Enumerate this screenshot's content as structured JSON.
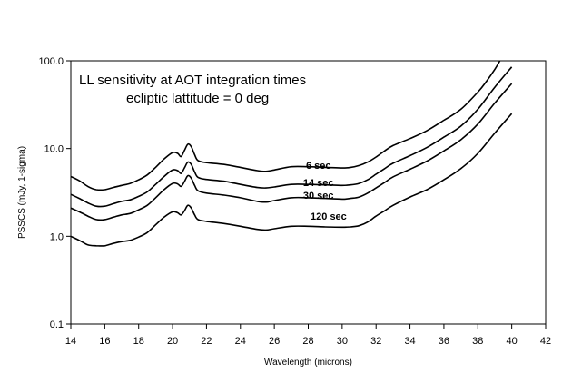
{
  "chart_data": {
    "type": "line",
    "title_lines": [
      "LL sensitivity at AOT integration times",
      "ecliptic lattitude = 0 deg"
    ],
    "xlabel": "Wavelength (microns)",
    "ylabel": "PSSCS (mJy, 1-sigma)",
    "xlim": [
      14,
      42
    ],
    "ylim": [
      0.1,
      100
    ],
    "yscale": "log",
    "x_ticks": [
      14,
      16,
      18,
      20,
      22,
      24,
      26,
      28,
      30,
      32,
      34,
      36,
      38,
      40,
      42
    ],
    "x_tick_labels": [
      "14",
      "16",
      "18",
      "20",
      "22",
      "24",
      "26",
      "28",
      "30",
      "32",
      "34",
      "36",
      "38",
      "40",
      "42"
    ],
    "y_ticks": [
      0.1,
      1,
      10,
      100
    ],
    "y_tick_labels": [
      "0.1",
      "1.0",
      "10.0",
      "100.0"
    ],
    "grid": false,
    "series": [
      {
        "name": "6 sec",
        "label_x": 28.6,
        "label_y": 6.5,
        "x": [
          14,
          14.5,
          15,
          15.5,
          16,
          16.5,
          17,
          17.5,
          18,
          18.5,
          19,
          19.5,
          20,
          20.3,
          20.5,
          20.7,
          20.9,
          21.1,
          21.3,
          21.5,
          22,
          23,
          24,
          25,
          25.5,
          26,
          27,
          28,
          29,
          30,
          30.5,
          31,
          31.5,
          32,
          32.5,
          33,
          34,
          35,
          36,
          37,
          38,
          38.5,
          39,
          39.3
        ],
        "values": [
          4.8,
          4.3,
          3.7,
          3.4,
          3.4,
          3.6,
          3.8,
          4.0,
          4.4,
          5.0,
          6.1,
          7.6,
          9.0,
          8.8,
          8.1,
          9.5,
          11.2,
          10.5,
          8.5,
          7.3,
          6.9,
          6.6,
          6.1,
          5.6,
          5.5,
          5.7,
          6.2,
          6.2,
          6.1,
          6.0,
          6.1,
          6.4,
          7.0,
          8.0,
          9.4,
          10.8,
          13.0,
          16.0,
          21.0,
          28.0,
          44.0,
          58.0,
          80.0,
          100.0
        ]
      },
      {
        "name": "14 sec",
        "label_x": 28.6,
        "label_y": 4.1,
        "x": [
          14,
          14.5,
          15,
          15.5,
          16,
          16.5,
          17,
          17.5,
          18,
          18.5,
          19,
          19.5,
          20,
          20.3,
          20.5,
          20.7,
          20.9,
          21.1,
          21.3,
          21.5,
          22,
          23,
          24,
          25,
          25.5,
          26,
          27,
          28,
          29,
          30,
          30.5,
          31,
          31.5,
          32,
          32.5,
          33,
          34,
          35,
          36,
          37,
          38,
          39,
          40
        ],
        "values": [
          3.0,
          2.7,
          2.4,
          2.2,
          2.2,
          2.35,
          2.5,
          2.6,
          2.85,
          3.2,
          3.9,
          4.8,
          5.7,
          5.6,
          5.2,
          6.0,
          7.0,
          6.6,
          5.4,
          4.7,
          4.45,
          4.25,
          3.9,
          3.6,
          3.55,
          3.65,
          3.9,
          3.9,
          3.85,
          3.8,
          3.85,
          4.0,
          4.4,
          5.1,
          5.9,
          6.8,
          8.3,
          10.3,
          13.5,
          18.0,
          28.0,
          50.0,
          85.0
        ]
      },
      {
        "name": "30 sec",
        "label_x": 28.6,
        "label_y": 2.95,
        "x": [
          14,
          14.5,
          15,
          15.5,
          16,
          16.5,
          17,
          17.5,
          18,
          18.5,
          19,
          19.5,
          20,
          20.3,
          20.5,
          20.7,
          20.9,
          21.1,
          21.3,
          21.5,
          22,
          23,
          24,
          25,
          25.5,
          26,
          27,
          28,
          29,
          30,
          30.5,
          31,
          31.5,
          32,
          32.5,
          33,
          34,
          35,
          36,
          37,
          38,
          39,
          40
        ],
        "values": [
          2.1,
          1.9,
          1.7,
          1.55,
          1.55,
          1.65,
          1.75,
          1.82,
          2.0,
          2.25,
          2.75,
          3.4,
          4.0,
          3.95,
          3.7,
          4.2,
          4.9,
          4.6,
          3.8,
          3.3,
          3.1,
          2.95,
          2.75,
          2.5,
          2.45,
          2.55,
          2.75,
          2.75,
          2.7,
          2.65,
          2.7,
          2.8,
          3.1,
          3.55,
          4.1,
          4.75,
          5.8,
          7.2,
          9.4,
          12.6,
          19.0,
          33.0,
          55.0
        ]
      },
      {
        "name": "120 sec",
        "label_x": 29.2,
        "label_y": 1.7,
        "x": [
          14,
          14.5,
          15,
          15.5,
          16,
          16.5,
          17,
          17.5,
          18,
          18.5,
          19,
          19.5,
          20,
          20.3,
          20.5,
          20.7,
          20.9,
          21.1,
          21.3,
          21.5,
          22,
          23,
          24,
          25,
          25.5,
          26,
          27,
          28,
          29,
          30,
          30.5,
          31,
          31.5,
          32,
          32.5,
          33,
          34,
          35,
          36,
          37,
          38,
          39,
          40
        ],
        "values": [
          1.0,
          0.9,
          0.8,
          0.78,
          0.78,
          0.83,
          0.87,
          0.9,
          0.98,
          1.1,
          1.35,
          1.65,
          1.9,
          1.85,
          1.75,
          1.95,
          2.25,
          2.1,
          1.75,
          1.55,
          1.48,
          1.4,
          1.3,
          1.2,
          1.18,
          1.22,
          1.3,
          1.3,
          1.28,
          1.27,
          1.28,
          1.32,
          1.45,
          1.7,
          1.95,
          2.25,
          2.8,
          3.4,
          4.4,
          5.9,
          8.8,
          15.0,
          25.0
        ]
      }
    ]
  }
}
